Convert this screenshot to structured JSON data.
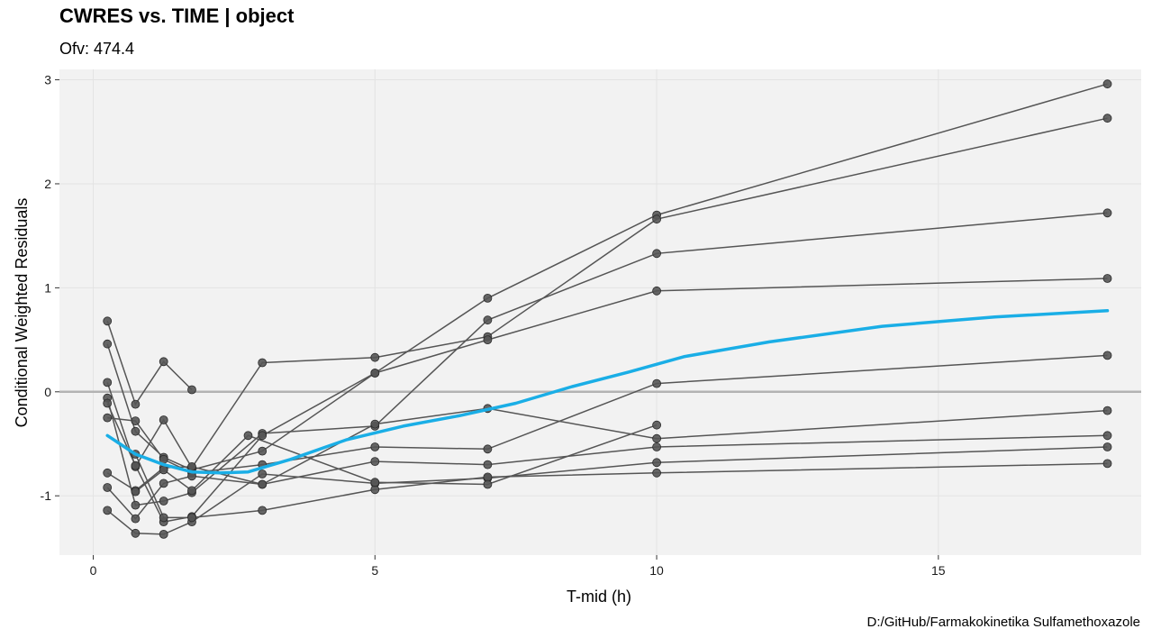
{
  "chart_data": {
    "type": "line",
    "title": "CWRES vs. TIME | object",
    "subtitle": "Ofv: 474.4",
    "caption": "D:/GitHub/Farmakokinetika Sulfamethoxazole",
    "xlabel": "T-mid (h)",
    "ylabel": "Conditional Weighted Residuals",
    "xlim": [
      -0.6,
      18.6
    ],
    "ylim": [
      -1.57,
      3.1
    ],
    "x_ticks": [
      0,
      5,
      10,
      15
    ],
    "y_ticks": [
      -1,
      0,
      1,
      2,
      3
    ],
    "x_tick_labels": [
      "0",
      "5",
      "10",
      "15"
    ],
    "y_tick_labels": [
      "-1",
      "0",
      "1",
      "2",
      "3"
    ],
    "grid": true,
    "reference_line": 0,
    "colors": {
      "panel": "#f2f2f2",
      "grid": "#e3e3e3",
      "individual": "#555555",
      "point": "#555555",
      "reference": "#b3b3b3",
      "smooth": "#1aaee6"
    },
    "series": [
      {
        "x": [
          0.25,
          0.75,
          1.25,
          1.75
        ],
        "y": [
          0.68,
          -0.12,
          0.29,
          0.02
        ]
      },
      {
        "x": [
          0.25,
          0.75,
          1.25,
          1.75,
          3,
          5,
          7,
          10,
          18
        ],
        "y": [
          0.46,
          -0.38,
          -0.63,
          -0.75,
          -0.57,
          0.18,
          0.9,
          1.7,
          2.96
        ]
      },
      {
        "x": [
          0.25,
          0.75,
          1.25,
          1.75,
          3,
          5,
          7,
          10,
          18
        ],
        "y": [
          0.09,
          -0.72,
          -0.27,
          -0.73,
          0.28,
          0.33,
          0.53,
          1.66,
          2.63
        ]
      },
      {
        "x": [
          0.25,
          0.75,
          1.25,
          1.75,
          3,
          5,
          7,
          10,
          18
        ],
        "y": [
          -0.06,
          -1.09,
          -1.05,
          -0.97,
          -0.4,
          -0.33,
          0.69,
          1.33,
          1.72
        ]
      },
      {
        "x": [
          0.25,
          0.75,
          1.25,
          1.75,
          3,
          5,
          7,
          10,
          18
        ],
        "y": [
          -0.11,
          -0.71,
          -1.25,
          -1.2,
          -0.42,
          0.18,
          0.5,
          0.97,
          1.09
        ]
      },
      {
        "x": [
          0.25,
          0.75,
          1.25,
          1.75,
          3,
          5,
          7,
          10,
          18
        ],
        "y": [
          -0.25,
          -0.28,
          -0.65,
          -0.78,
          -0.7,
          -0.53,
          -0.55,
          0.08,
          0.35
        ]
      },
      {
        "x": [
          0.25,
          0.75,
          1.25,
          1.75,
          3,
          5,
          7,
          10,
          18
        ],
        "y": [
          -0.78,
          -0.95,
          -0.73,
          -0.72,
          -0.89,
          -0.31,
          -0.16,
          -0.45,
          -0.18
        ]
      },
      {
        "x": [
          0.25,
          0.75,
          1.25,
          1.75,
          3,
          5,
          7,
          10,
          18
        ],
        "y": [
          -0.92,
          -1.22,
          -0.88,
          -0.81,
          -0.89,
          -0.67,
          -0.7,
          -0.53,
          -0.42
        ]
      },
      {
        "x": [
          0.25,
          0.75,
          1.25,
          1.75,
          3,
          5,
          7,
          10,
          18
        ],
        "y": [
          -1.14,
          -1.36,
          -1.37,
          -1.25,
          -0.79,
          -0.88,
          -0.83,
          -0.68,
          -0.53
        ]
      },
      {
        "x": [
          0.75,
          1.25,
          1.75,
          3,
          5,
          7,
          10,
          18
        ],
        "y": [
          -0.6,
          -1.21,
          -1.21,
          -1.14,
          -0.94,
          -0.82,
          -0.78,
          -0.69
        ]
      },
      {
        "x": [
          0.75,
          1.25,
          1.75,
          2.75,
          5,
          7,
          10
        ],
        "y": [
          -0.96,
          -0.75,
          -0.95,
          -0.42,
          -0.87,
          -0.89,
          -0.32
        ]
      }
    ],
    "smooth": {
      "x": [
        0.25,
        0.75,
        1.25,
        1.75,
        2.25,
        2.75,
        3.5,
        4.5,
        5.5,
        6.5,
        7.5,
        8.5,
        9.5,
        10.5,
        12,
        14,
        16,
        18
      ],
      "y": [
        -0.42,
        -0.6,
        -0.7,
        -0.77,
        -0.78,
        -0.77,
        -0.65,
        -0.46,
        -0.33,
        -0.23,
        -0.11,
        0.05,
        0.19,
        0.34,
        0.48,
        0.63,
        0.72,
        0.78
      ]
    }
  }
}
